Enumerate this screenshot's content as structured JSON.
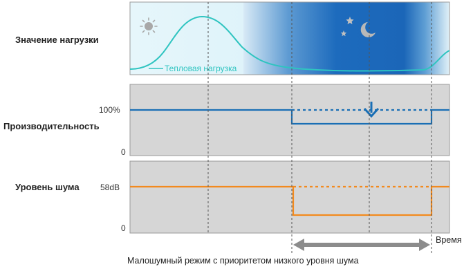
{
  "rows": {
    "load": {
      "label": "Значение нагрузки",
      "curve_label": "Тепловая нагрузка"
    },
    "performance": {
      "label": "Производительность",
      "tick_top": "100%",
      "tick_bottom": "0"
    },
    "noise": {
      "label": "Уровень шума",
      "tick_top": "58dB",
      "tick_bottom": "0"
    }
  },
  "axis": {
    "time_label": "Время"
  },
  "night_mode_caption": "Малошумный режим с приоритетом низкого уровня шума",
  "icons": {
    "day": "sun-icon",
    "night": "moon-stars-icon"
  },
  "colors": {
    "performance_line": "#1a6fb5",
    "noise_line": "#f28a1e",
    "heat_curve": "#2ec4c0",
    "night_sky": "#1e6fbf",
    "panel_bg": "#d6d6d6",
    "arrow": "#8c8c8c"
  }
}
